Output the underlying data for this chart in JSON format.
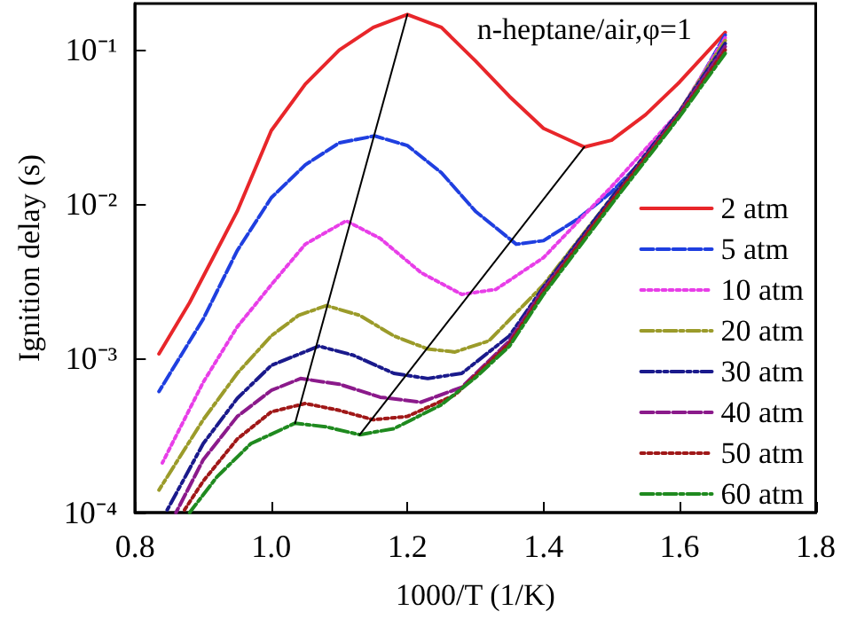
{
  "chart_data": {
    "type": "line",
    "xlabel": "1000/T (1/K)",
    "ylabel": "Ignition delay (s)",
    "log": "y",
    "xlim": [
      0.8,
      1.8
    ],
    "ylim": [
      0.0001,
      0.2
    ],
    "xticks": [
      {
        "value": 0.8,
        "label": "0.8"
      },
      {
        "value": 1.0,
        "label": "1.0"
      },
      {
        "value": 1.2,
        "label": "1.2"
      },
      {
        "value": 1.4,
        "label": "1.4"
      },
      {
        "value": 1.6,
        "label": "1.6"
      },
      {
        "value": 1.8,
        "label": "1.8"
      }
    ],
    "yticks": [
      {
        "value": 0.0001,
        "label": "10⁻⁴"
      },
      {
        "value": 0.001,
        "label": "10⁻³"
      },
      {
        "value": 0.01,
        "label": "10⁻²"
      },
      {
        "value": 0.1,
        "label": "10⁻¹"
      }
    ],
    "grid": false,
    "legend": "right",
    "marker": "none",
    "annotations": [
      "n-heptane/air,φ=1"
    ],
    "series": [
      {
        "name": "2 atm",
        "color": "#e8262a",
        "line_style": "solid",
        "x": [
          0.835,
          0.88,
          0.95,
          1.0,
          1.05,
          1.1,
          1.15,
          1.2,
          1.25,
          1.3,
          1.35,
          1.4,
          1.46,
          1.5,
          1.55,
          1.6,
          1.667
        ],
        "values": [
          0.00107,
          0.0023,
          0.009,
          0.03,
          0.06,
          0.1,
          0.14,
          0.17,
          0.14,
          0.085,
          0.05,
          0.031,
          0.0235,
          0.026,
          0.038,
          0.062,
          0.13
        ]
      },
      {
        "name": "5 atm",
        "color": "#1f3fe0",
        "line_style": "dashed",
        "x": [
          0.835,
          0.9,
          0.95,
          1.0,
          1.05,
          1.1,
          1.152,
          1.2,
          1.25,
          1.3,
          1.36,
          1.4,
          1.45,
          1.5,
          1.55,
          1.6,
          1.667
        ],
        "values": [
          0.00061,
          0.0018,
          0.005,
          0.011,
          0.018,
          0.025,
          0.0277,
          0.024,
          0.016,
          0.009,
          0.0055,
          0.0058,
          0.008,
          0.012,
          0.02,
          0.038,
          0.125
        ]
      },
      {
        "name": "10 atm",
        "color": "#e83ee8",
        "line_style": "dotted",
        "x": [
          0.84,
          0.9,
          0.95,
          1.0,
          1.05,
          1.11,
          1.16,
          1.22,
          1.28,
          1.33,
          1.4,
          1.5,
          1.6,
          1.667
        ],
        "values": [
          0.00021,
          0.0007,
          0.0016,
          0.003,
          0.0055,
          0.0078,
          0.006,
          0.0036,
          0.0026,
          0.0028,
          0.0045,
          0.013,
          0.04,
          0.12
        ]
      },
      {
        "name": "20 atm",
        "color": "#9b9b2a",
        "line_style": "dashdot",
        "x": [
          0.835,
          0.9,
          0.95,
          1.0,
          1.04,
          1.081,
          1.13,
          1.18,
          1.23,
          1.27,
          1.32,
          1.4,
          1.5,
          1.6,
          1.667
        ],
        "values": [
          0.00014,
          0.0004,
          0.0008,
          0.0014,
          0.0019,
          0.0022,
          0.0019,
          0.0014,
          0.00115,
          0.0011,
          0.0013,
          0.003,
          0.011,
          0.04,
          0.115
        ]
      },
      {
        "name": "30 atm",
        "color": "#1a1a8c",
        "line_style": "dashdotdot",
        "x": [
          0.845,
          0.9,
          0.95,
          1.0,
          1.07,
          1.12,
          1.18,
          1.23,
          1.28,
          1.35,
          1.4,
          1.5,
          1.6,
          1.667
        ],
        "values": [
          0.0001,
          0.00028,
          0.00055,
          0.0009,
          0.0012,
          0.00105,
          0.0008,
          0.00074,
          0.0008,
          0.0014,
          0.0029,
          0.011,
          0.04,
          0.11
        ]
      },
      {
        "name": "40 atm",
        "color": "#8b1a8b",
        "line_style": "dashed",
        "x": [
          0.86,
          0.9,
          0.95,
          1.0,
          1.043,
          1.1,
          1.16,
          1.22,
          1.28,
          1.35,
          1.4,
          1.5,
          1.6,
          1.667
        ],
        "values": [
          0.0001,
          0.00022,
          0.00042,
          0.00062,
          0.00074,
          0.00068,
          0.00056,
          0.00052,
          0.00065,
          0.0013,
          0.0028,
          0.0105,
          0.039,
          0.105
        ]
      },
      {
        "name": "50 atm",
        "color": "#a01818",
        "line_style": "dotted",
        "x": [
          0.87,
          0.9,
          0.95,
          1.0,
          1.05,
          1.1,
          1.15,
          1.2,
          1.27,
          1.35,
          1.4,
          1.5,
          1.6,
          1.667
        ],
        "values": [
          0.0001,
          0.00016,
          0.0003,
          0.00045,
          0.00051,
          0.00046,
          0.0004,
          0.00042,
          0.00058,
          0.00125,
          0.0027,
          0.0105,
          0.038,
          0.1
        ]
      },
      {
        "name": "60 atm",
        "color": "#1f8a1f",
        "line_style": "dashdot",
        "x": [
          0.88,
          0.92,
          0.97,
          1.035,
          1.08,
          1.13,
          1.18,
          1.25,
          1.3,
          1.35,
          1.4,
          1.5,
          1.6,
          1.667
        ],
        "values": [
          0.0001,
          0.00017,
          0.00028,
          0.00038,
          0.00036,
          0.00032,
          0.00035,
          0.0005,
          0.00075,
          0.0012,
          0.0026,
          0.01,
          0.037,
          0.095
        ]
      },
      {
        "color": "#000000",
        "line_style": "solid",
        "x": [
          1.035,
          1.2
        ],
        "values": [
          0.00038,
          0.17
        ]
      },
      {
        "color": "#000000",
        "line_style": "solid",
        "x": [
          1.13,
          1.46
        ],
        "values": [
          0.00032,
          0.0235
        ]
      }
    ]
  }
}
